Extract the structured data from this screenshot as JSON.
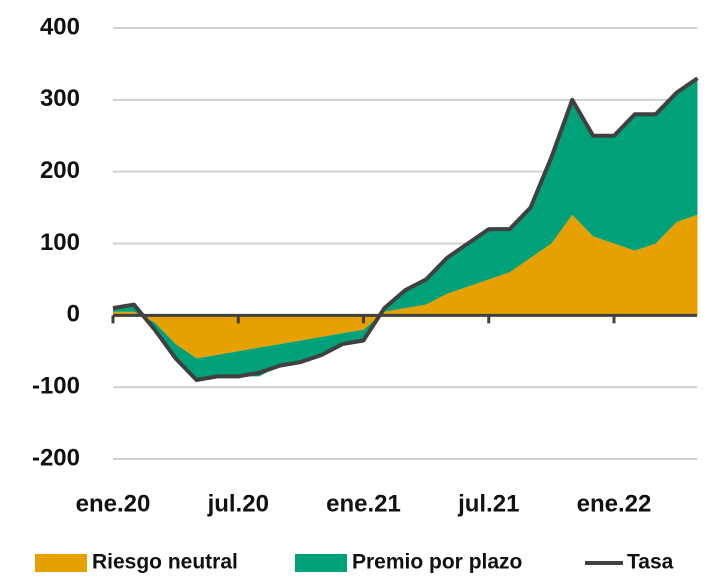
{
  "chart_data": {
    "type": "stacked-area-line",
    "categories": [
      "ene.20",
      null,
      null,
      null,
      null,
      null,
      "jul.20",
      null,
      null,
      null,
      null,
      null,
      "ene.21",
      null,
      null,
      null,
      null,
      null,
      "jul.21",
      null,
      null,
      null,
      null,
      null,
      "ene.22",
      null,
      null,
      null,
      null
    ],
    "series": [
      {
        "name": "Riesgo neutral",
        "color": "#e6a100",
        "kind": "area",
        "values": [
          5,
          5,
          -10,
          -40,
          -60,
          -55,
          -50,
          -45,
          -40,
          -35,
          -30,
          -25,
          -20,
          5,
          10,
          15,
          30,
          40,
          50,
          60,
          80,
          100,
          140,
          110,
          100,
          90,
          100,
          130,
          140
        ]
      },
      {
        "name": "Premio por plazo",
        "color": "#00a079",
        "kind": "area",
        "values": [
          5,
          10,
          -10,
          -20,
          -30,
          -30,
          -35,
          -40,
          -30,
          -30,
          -25,
          -15,
          -15,
          5,
          25,
          35,
          50,
          60,
          70,
          60,
          70,
          120,
          160,
          140,
          150,
          190,
          180,
          180,
          190
        ]
      },
      {
        "name": "Tasa",
        "color": "#404040",
        "kind": "line",
        "values": [
          10,
          15,
          -20,
          -60,
          -90,
          -85,
          -85,
          -80,
          -70,
          -65,
          -55,
          -40,
          -35,
          10,
          35,
          50,
          80,
          100,
          120,
          120,
          150,
          220,
          300,
          250,
          250,
          280,
          280,
          310,
          330
        ]
      }
    ],
    "ylim": [
      -200,
      400
    ],
    "yticks": [
      -200,
      -100,
      0,
      100,
      200,
      300,
      400
    ],
    "grid": true,
    "legend": "bottom"
  }
}
